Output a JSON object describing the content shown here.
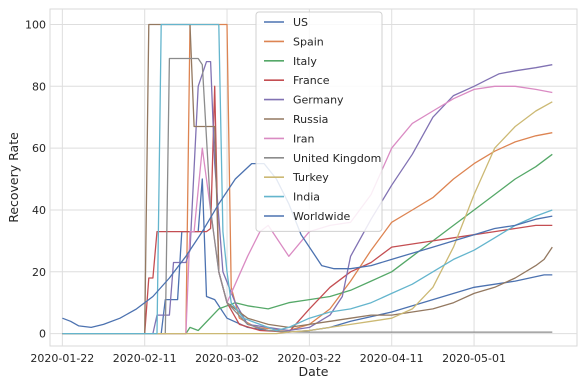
{
  "chart_data": {
    "type": "line",
    "xlabel": "Date",
    "ylabel": "Recovery Rate",
    "x_tick_labels": [
      "2020-01-22",
      "2020-02-11",
      "2020-03-02",
      "2020-03-22",
      "2020-04-11",
      "2020-05-01"
    ],
    "x_tick_days": [
      0,
      20,
      40,
      60,
      80,
      100
    ],
    "x_range_days": [
      -3,
      125
    ],
    "ylim": [
      -4,
      105
    ],
    "y_ticks": [
      0,
      20,
      40,
      60,
      80,
      100
    ],
    "grid": true,
    "legend_position": "top-center",
    "series": [
      {
        "name": "US",
        "color": "#4c72b0",
        "points": [
          [
            0,
            0
          ],
          [
            24,
            0
          ],
          [
            25,
            11
          ],
          [
            28,
            11
          ],
          [
            29,
            33
          ],
          [
            33,
            33
          ],
          [
            34,
            50
          ],
          [
            35,
            12
          ],
          [
            37,
            11
          ],
          [
            40,
            5
          ],
          [
            45,
            2
          ],
          [
            50,
            1
          ],
          [
            55,
            0.5
          ],
          [
            60,
            1
          ],
          [
            65,
            2
          ],
          [
            70,
            4
          ],
          [
            80,
            7
          ],
          [
            90,
            11
          ],
          [
            100,
            15
          ],
          [
            110,
            17
          ],
          [
            117,
            19
          ],
          [
            119,
            19
          ]
        ]
      },
      {
        "name": "Spain",
        "color": "#dd8452",
        "points": [
          [
            0,
            0
          ],
          [
            30,
            0
          ],
          [
            31,
            100
          ],
          [
            40,
            100
          ],
          [
            41,
            15
          ],
          [
            43,
            5
          ],
          [
            47,
            2
          ],
          [
            55,
            1
          ],
          [
            60,
            3
          ],
          [
            65,
            8
          ],
          [
            70,
            17
          ],
          [
            75,
            27
          ],
          [
            80,
            36
          ],
          [
            85,
            40
          ],
          [
            90,
            44
          ],
          [
            95,
            50
          ],
          [
            100,
            55
          ],
          [
            105,
            59
          ],
          [
            110,
            62
          ],
          [
            115,
            64
          ],
          [
            119,
            65
          ]
        ]
      },
      {
        "name": "Italy",
        "color": "#55a868",
        "points": [
          [
            0,
            0
          ],
          [
            30,
            0
          ],
          [
            31,
            2
          ],
          [
            33,
            1
          ],
          [
            38,
            8
          ],
          [
            42,
            10
          ],
          [
            45,
            9
          ],
          [
            50,
            8
          ],
          [
            55,
            10
          ],
          [
            60,
            11
          ],
          [
            65,
            12
          ],
          [
            70,
            14
          ],
          [
            75,
            17
          ],
          [
            80,
            20
          ],
          [
            85,
            25
          ],
          [
            90,
            30
          ],
          [
            95,
            35
          ],
          [
            100,
            40
          ],
          [
            105,
            45
          ],
          [
            110,
            50
          ],
          [
            115,
            54
          ],
          [
            119,
            58
          ]
        ]
      },
      {
        "name": "France",
        "color": "#c44e52",
        "points": [
          [
            0,
            0
          ],
          [
            20,
            0
          ],
          [
            21,
            18
          ],
          [
            22,
            18
          ],
          [
            23,
            33
          ],
          [
            35,
            33
          ],
          [
            36,
            34
          ],
          [
            37,
            80
          ],
          [
            38,
            20
          ],
          [
            40,
            10
          ],
          [
            43,
            3
          ],
          [
            48,
            1
          ],
          [
            55,
            0.5
          ],
          [
            60,
            8
          ],
          [
            65,
            15
          ],
          [
            70,
            20
          ],
          [
            75,
            23
          ],
          [
            80,
            28
          ],
          [
            85,
            29
          ],
          [
            90,
            30
          ],
          [
            95,
            31
          ],
          [
            100,
            32
          ],
          [
            105,
            33
          ],
          [
            110,
            34
          ],
          [
            115,
            35
          ],
          [
            119,
            35
          ]
        ]
      },
      {
        "name": "Germany",
        "color": "#8172b3",
        "points": [
          [
            0,
            0
          ],
          [
            22,
            0
          ],
          [
            23,
            6
          ],
          [
            26,
            6
          ],
          [
            27,
            23
          ],
          [
            30,
            23
          ],
          [
            31,
            27
          ],
          [
            33,
            80
          ],
          [
            35,
            88
          ],
          [
            36,
            88
          ],
          [
            37,
            55
          ],
          [
            39,
            20
          ],
          [
            42,
            10
          ],
          [
            45,
            3
          ],
          [
            50,
            2
          ],
          [
            55,
            1
          ],
          [
            60,
            2
          ],
          [
            65,
            6
          ],
          [
            68,
            12
          ],
          [
            70,
            25
          ],
          [
            75,
            37
          ],
          [
            80,
            48
          ],
          [
            85,
            58
          ],
          [
            90,
            70
          ],
          [
            95,
            77
          ],
          [
            100,
            80
          ],
          [
            103,
            82
          ],
          [
            106,
            84
          ],
          [
            110,
            85
          ],
          [
            115,
            86
          ],
          [
            119,
            87
          ]
        ]
      },
      {
        "name": "Russia",
        "color": "#937860",
        "points": [
          [
            0,
            0
          ],
          [
            20,
            0
          ],
          [
            21,
            100
          ],
          [
            31,
            100
          ],
          [
            32,
            67
          ],
          [
            37,
            67
          ],
          [
            38,
            20
          ],
          [
            40,
            10
          ],
          [
            45,
            5
          ],
          [
            50,
            3
          ],
          [
            55,
            2
          ],
          [
            60,
            3
          ],
          [
            65,
            4
          ],
          [
            70,
            5
          ],
          [
            75,
            6
          ],
          [
            80,
            6
          ],
          [
            85,
            7
          ],
          [
            90,
            8
          ],
          [
            95,
            10
          ],
          [
            100,
            13
          ],
          [
            105,
            15
          ],
          [
            110,
            18
          ],
          [
            115,
            22
          ],
          [
            117,
            24
          ],
          [
            119,
            28
          ]
        ]
      },
      {
        "name": "Iran",
        "color": "#da8bc3",
        "points": [
          [
            0,
            0
          ],
          [
            30,
            0
          ],
          [
            31,
            33
          ],
          [
            32,
            33
          ],
          [
            34,
            60
          ],
          [
            36,
            40
          ],
          [
            38,
            20
          ],
          [
            40,
            10
          ],
          [
            45,
            25
          ],
          [
            48,
            33
          ],
          [
            50,
            35
          ],
          [
            55,
            25
          ],
          [
            60,
            33
          ],
          [
            65,
            35
          ],
          [
            70,
            36
          ],
          [
            75,
            45
          ],
          [
            80,
            60
          ],
          [
            85,
            68
          ],
          [
            90,
            72
          ],
          [
            95,
            76
          ],
          [
            100,
            79
          ],
          [
            105,
            80
          ],
          [
            110,
            80
          ],
          [
            115,
            79
          ],
          [
            119,
            78
          ]
        ]
      },
      {
        "name": "United Kingdom",
        "color": "#8c8c8c",
        "points": [
          [
            0,
            0
          ],
          [
            25,
            0
          ],
          [
            26,
            89
          ],
          [
            33,
            89
          ],
          [
            34,
            87
          ],
          [
            36,
            40
          ],
          [
            38,
            20
          ],
          [
            40,
            10
          ],
          [
            45,
            3
          ],
          [
            50,
            1
          ],
          [
            55,
            0.6
          ],
          [
            60,
            0.5
          ],
          [
            70,
            0.5
          ],
          [
            80,
            0.5
          ],
          [
            90,
            0.5
          ],
          [
            100,
            0.5
          ],
          [
            110,
            0.5
          ],
          [
            119,
            0.5
          ]
        ]
      },
      {
        "name": "Turkey",
        "color": "#ccb974",
        "points": [
          [
            0,
            0
          ],
          [
            52,
            0
          ],
          [
            55,
            0.5
          ],
          [
            60,
            1
          ],
          [
            65,
            2
          ],
          [
            70,
            3
          ],
          [
            75,
            4
          ],
          [
            80,
            5
          ],
          [
            85,
            8
          ],
          [
            90,
            15
          ],
          [
            95,
            28
          ],
          [
            100,
            45
          ],
          [
            105,
            60
          ],
          [
            110,
            67
          ],
          [
            115,
            72
          ],
          [
            119,
            75
          ]
        ]
      },
      {
        "name": "India",
        "color": "#64b5cd",
        "points": [
          [
            0,
            0
          ],
          [
            23,
            0
          ],
          [
            24,
            100
          ],
          [
            38,
            100
          ],
          [
            39,
            33
          ],
          [
            40,
            20
          ],
          [
            41,
            10
          ],
          [
            44,
            5
          ],
          [
            48,
            3
          ],
          [
            52,
            1
          ],
          [
            55,
            2
          ],
          [
            60,
            5
          ],
          [
            65,
            7
          ],
          [
            70,
            8
          ],
          [
            75,
            10
          ],
          [
            80,
            13
          ],
          [
            85,
            16
          ],
          [
            90,
            20
          ],
          [
            95,
            24
          ],
          [
            100,
            27
          ],
          [
            105,
            31
          ],
          [
            110,
            35
          ],
          [
            115,
            38
          ],
          [
            119,
            40
          ]
        ]
      },
      {
        "name": "Worldwide",
        "color": "#4c72b0",
        "points": [
          [
            0,
            5
          ],
          [
            2,
            4
          ],
          [
            4,
            2.5
          ],
          [
            7,
            2
          ],
          [
            10,
            3
          ],
          [
            14,
            5
          ],
          [
            18,
            8
          ],
          [
            22,
            12
          ],
          [
            26,
            18
          ],
          [
            30,
            25
          ],
          [
            34,
            33
          ],
          [
            38,
            42
          ],
          [
            42,
            50
          ],
          [
            46,
            55
          ],
          [
            49,
            55
          ],
          [
            52,
            50
          ],
          [
            55,
            42
          ],
          [
            58,
            32
          ],
          [
            60,
            28
          ],
          [
            63,
            22
          ],
          [
            66,
            21
          ],
          [
            70,
            21
          ],
          [
            75,
            22
          ],
          [
            80,
            24
          ],
          [
            85,
            26
          ],
          [
            90,
            28
          ],
          [
            95,
            30
          ],
          [
            100,
            32
          ],
          [
            105,
            34
          ],
          [
            110,
            35
          ],
          [
            115,
            37
          ],
          [
            119,
            38
          ]
        ]
      }
    ]
  }
}
